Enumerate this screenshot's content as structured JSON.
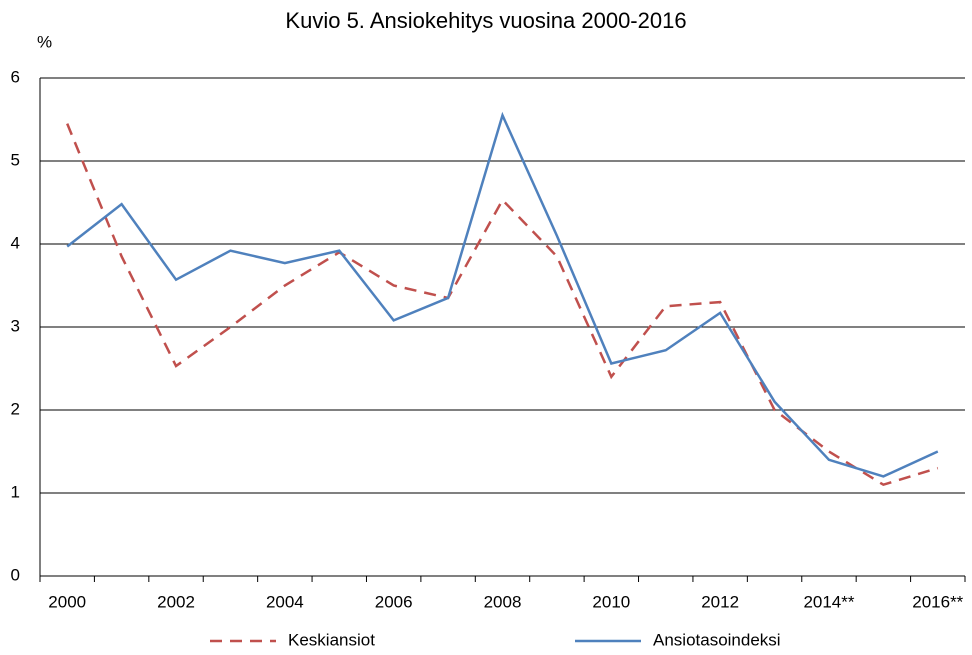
{
  "chart_data": {
    "type": "line",
    "title": "Kuvio 5. Ansiokehitys vuosina 2000-2016",
    "y_label": "%",
    "categories": [
      "2000",
      null,
      "2002",
      null,
      "2004",
      null,
      "2006",
      null,
      "2008",
      null,
      "2010",
      null,
      "2012",
      null,
      "2014**",
      null,
      "2016**"
    ],
    "series": [
      {
        "name": "Keskiansiot",
        "color": "#c0504d",
        "dash": true,
        "values": [
          5.45,
          3.85,
          2.53,
          3.0,
          3.5,
          3.9,
          3.5,
          3.35,
          4.53,
          3.85,
          2.4,
          3.25,
          3.3,
          2.0,
          1.5,
          1.1,
          1.3
        ]
      },
      {
        "name": "Ansiotasoindeksi",
        "color": "#4f81bd",
        "dash": false,
        "values": [
          3.97,
          4.48,
          3.57,
          3.92,
          3.77,
          3.92,
          3.08,
          3.35,
          5.55,
          4.1,
          2.56,
          2.72,
          3.17,
          2.1,
          1.4,
          1.2,
          1.5
        ]
      }
    ],
    "ylim": [
      0,
      6
    ],
    "yticks": [
      0,
      1,
      2,
      3,
      4,
      5,
      6
    ],
    "grid": true,
    "legend": "bottom"
  }
}
